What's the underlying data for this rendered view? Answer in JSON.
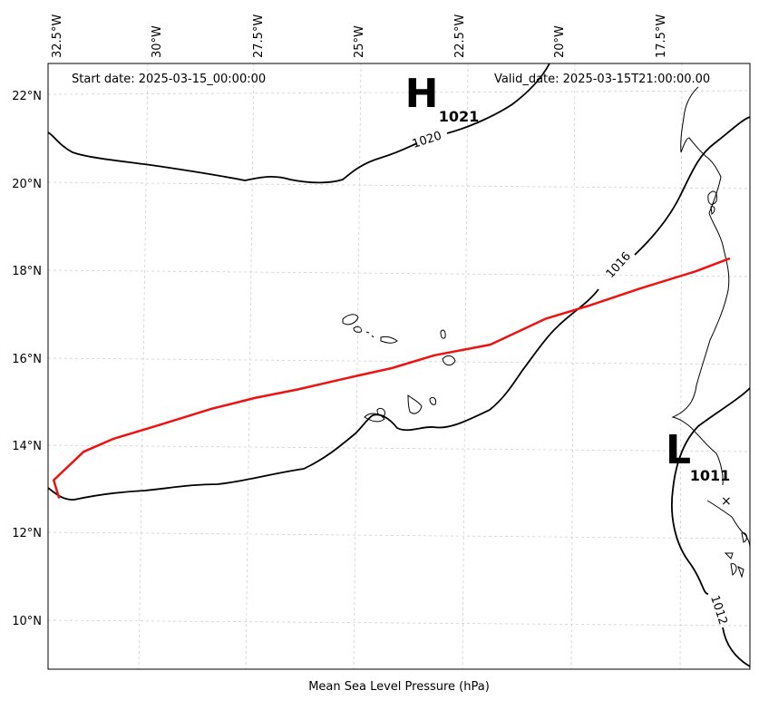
{
  "header": {
    "start_date": "Start date: 2025-03-15_00:00:00",
    "valid_date": "Valid_date: 2025-03-15T21:00:00.00"
  },
  "axes": {
    "longitude_labels": [
      "32.5°W",
      "30°W",
      "27.5°W",
      "25°W",
      "22.5°W",
      "20°W",
      "17.5°W"
    ],
    "latitude_labels": [
      "22°N",
      "20°N",
      "18°N",
      "16°N",
      "14°N",
      "12°N",
      "10°N"
    ]
  },
  "isobars": {
    "labels": [
      "1020",
      "1016",
      "1012"
    ]
  },
  "pressure_centers": {
    "high": {
      "letter": "H",
      "value": "1021"
    },
    "low": {
      "letter": "L",
      "value": "1011"
    }
  },
  "storm_track": {
    "color": "#ee1111",
    "points": [
      [
        -32.2,
        13.2
      ],
      [
        -31.5,
        13.85
      ],
      [
        -30.8,
        14.15
      ],
      [
        -29.8,
        14.45
      ],
      [
        -28.5,
        14.85
      ],
      [
        -27.5,
        15.1
      ],
      [
        -26.5,
        15.3
      ],
      [
        -25.2,
        15.6
      ],
      [
        -24.3,
        15.8
      ],
      [
        -23.3,
        16.1
      ],
      [
        -22.0,
        16.35
      ],
      [
        -20.7,
        16.95
      ],
      [
        -19.7,
        17.25
      ],
      [
        -18.5,
        17.65
      ],
      [
        -17.2,
        18.05
      ],
      [
        -16.4,
        18.35
      ]
    ]
  },
  "footer": {
    "caption": "Mean Sea Level Pressure (hPa)"
  }
}
